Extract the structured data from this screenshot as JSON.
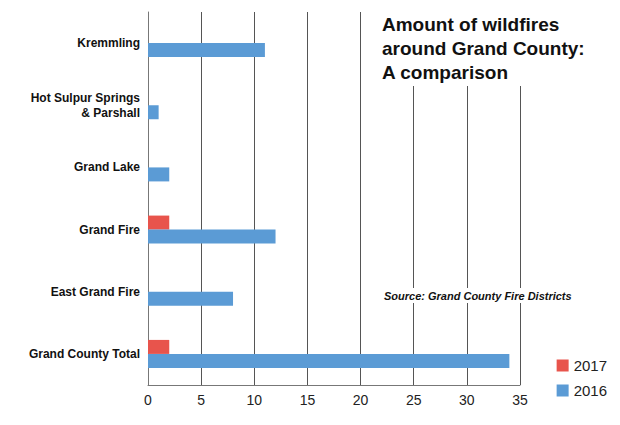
{
  "chart_data": {
    "type": "bar",
    "title": "Amount of wildfires around Grand County: A comparison",
    "annotations": [
      "Source: Grand County Fire Districts"
    ],
    "orientation": "horizontal",
    "categories": [
      "Grand County Total",
      "East Grand Fire",
      "Grand Fire",
      "Grand Lake",
      "Hot Sulpur Springs & Parshall",
      "Kremmling"
    ],
    "series": [
      {
        "name": "2017",
        "color": "#e8544c",
        "values": [
          2,
          0,
          2,
          0,
          0,
          0
        ]
      },
      {
        "name": "2016",
        "color": "#5b9bd5",
        "values": [
          34,
          8,
          12,
          2,
          1,
          11
        ]
      }
    ],
    "xlim": [
      0,
      35
    ],
    "xticks": [
      0,
      5,
      10,
      15,
      20,
      25,
      30,
      35
    ],
    "grid": true,
    "legend": "lower right",
    "data_labels": false
  }
}
